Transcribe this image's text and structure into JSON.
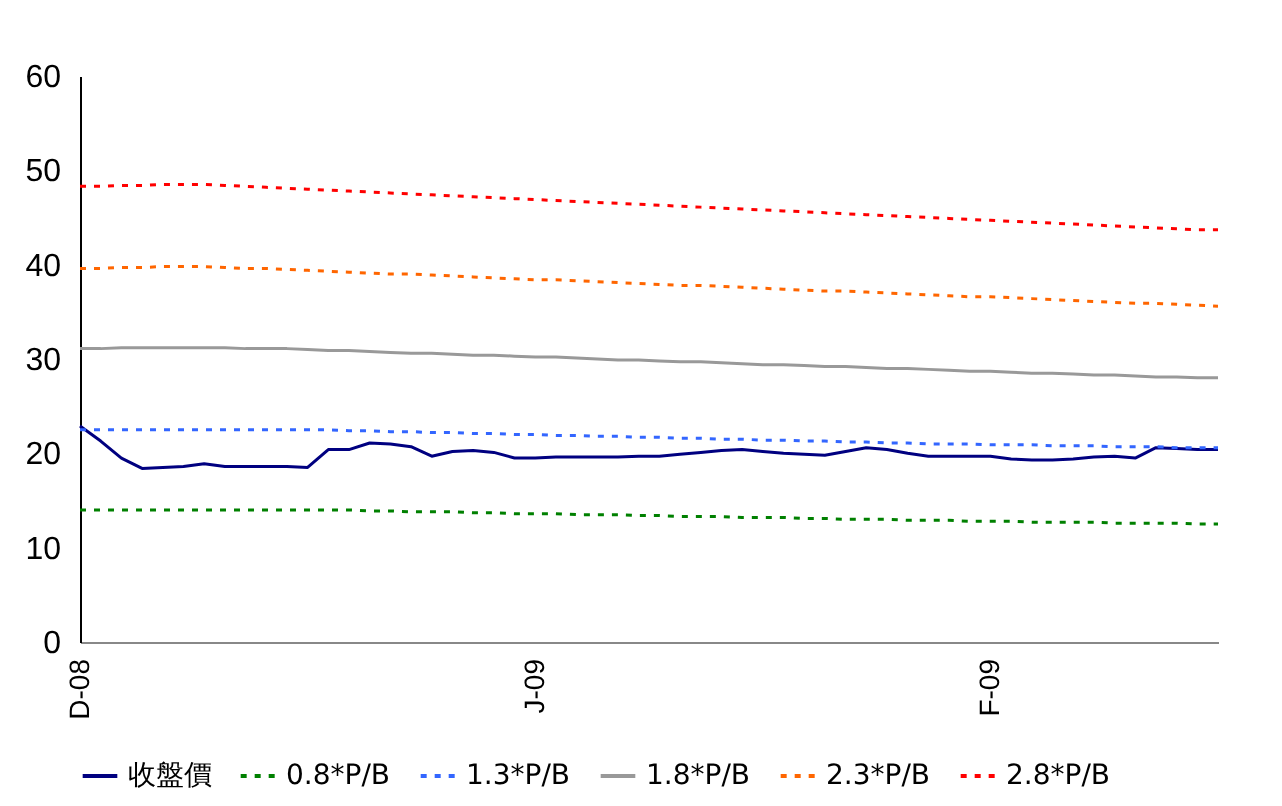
{
  "chart_data": {
    "type": "line",
    "categories": [
      "D-08",
      null,
      null,
      null,
      null,
      null,
      null,
      null,
      null,
      null,
      null,
      null,
      null,
      null,
      null,
      null,
      null,
      null,
      null,
      null,
      null,
      null,
      "J-09",
      null,
      null,
      null,
      null,
      null,
      null,
      null,
      null,
      null,
      null,
      null,
      null,
      null,
      null,
      null,
      null,
      null,
      null,
      null,
      null,
      null,
      "F-09",
      null,
      null,
      null,
      null,
      null,
      null,
      null,
      null,
      null,
      null,
      null
    ],
    "series": [
      {
        "name": "收盤價",
        "color": "#000080",
        "line_style": "solid",
        "values": [
          22.9,
          21.3,
          19.5,
          18.4,
          18.5,
          18.6,
          18.9,
          18.6,
          18.6,
          18.6,
          18.6,
          18.5,
          20.4,
          20.4,
          21.1,
          21.0,
          20.7,
          19.7,
          20.2,
          20.3,
          20.1,
          19.5,
          19.5,
          19.6,
          19.6,
          19.6,
          19.6,
          19.7,
          19.7,
          19.9,
          20.1,
          20.3,
          20.4,
          20.2,
          20.0,
          19.9,
          19.8,
          20.2,
          20.6,
          20.4,
          20.0,
          19.7,
          19.7,
          19.7,
          19.7,
          19.4,
          19.3,
          19.3,
          19.4,
          19.6,
          19.7,
          19.5,
          20.6,
          20.5,
          20.4,
          20.4
        ]
      },
      {
        "name": "0.8*P/B",
        "color": "#008000",
        "line_style": "dashed",
        "values": [
          14.0,
          14.0,
          14.0,
          14.0,
          14.0,
          14.0,
          14.0,
          14.0,
          14.0,
          14.0,
          14.0,
          14.0,
          14.0,
          14.0,
          13.9,
          13.9,
          13.8,
          13.8,
          13.8,
          13.7,
          13.7,
          13.6,
          13.6,
          13.6,
          13.5,
          13.5,
          13.5,
          13.4,
          13.4,
          13.3,
          13.3,
          13.3,
          13.2,
          13.2,
          13.2,
          13.1,
          13.1,
          13.0,
          13.0,
          13.0,
          12.9,
          12.9,
          12.9,
          12.8,
          12.8,
          12.8,
          12.7,
          12.7,
          12.7,
          12.7,
          12.6,
          12.6,
          12.6,
          12.6,
          12.5,
          12.5
        ]
      },
      {
        "name": "1.3*P/B",
        "color": "#3366ff",
        "line_style": "dashed",
        "values": [
          22.5,
          22.5,
          22.5,
          22.5,
          22.5,
          22.5,
          22.5,
          22.5,
          22.5,
          22.5,
          22.5,
          22.5,
          22.5,
          22.4,
          22.4,
          22.3,
          22.3,
          22.2,
          22.2,
          22.1,
          22.1,
          22.0,
          22.0,
          21.9,
          21.9,
          21.8,
          21.8,
          21.7,
          21.7,
          21.6,
          21.6,
          21.5,
          21.5,
          21.4,
          21.4,
          21.3,
          21.3,
          21.2,
          21.2,
          21.1,
          21.1,
          21.0,
          21.0,
          21.0,
          20.9,
          20.9,
          20.9,
          20.8,
          20.8,
          20.8,
          20.7,
          20.7,
          20.7,
          20.6,
          20.6,
          20.6
        ]
      },
      {
        "name": "1.8*P/B",
        "color": "#999999",
        "line_style": "solid",
        "values": [
          31.1,
          31.1,
          31.2,
          31.2,
          31.2,
          31.2,
          31.2,
          31.2,
          31.1,
          31.1,
          31.1,
          31.0,
          30.9,
          30.9,
          30.8,
          30.7,
          30.6,
          30.6,
          30.5,
          30.4,
          30.4,
          30.3,
          30.2,
          30.2,
          30.1,
          30.0,
          29.9,
          29.9,
          29.8,
          29.7,
          29.7,
          29.6,
          29.5,
          29.4,
          29.4,
          29.3,
          29.2,
          29.2,
          29.1,
          29.0,
          29.0,
          28.9,
          28.8,
          28.7,
          28.7,
          28.6,
          28.5,
          28.5,
          28.4,
          28.3,
          28.3,
          28.2,
          28.1,
          28.1,
          28.0,
          28.0
        ]
      },
      {
        "name": "2.3*P/B",
        "color": "#ff6600",
        "line_style": "dashed",
        "values": [
          39.6,
          39.6,
          39.7,
          39.7,
          39.8,
          39.8,
          39.8,
          39.7,
          39.6,
          39.6,
          39.5,
          39.4,
          39.3,
          39.2,
          39.1,
          39.0,
          39.0,
          38.9,
          38.8,
          38.7,
          38.6,
          38.5,
          38.4,
          38.4,
          38.3,
          38.2,
          38.1,
          38.0,
          37.9,
          37.8,
          37.8,
          37.7,
          37.6,
          37.5,
          37.4,
          37.3,
          37.2,
          37.2,
          37.1,
          37.0,
          36.9,
          36.8,
          36.7,
          36.6,
          36.6,
          36.5,
          36.4,
          36.3,
          36.2,
          36.1,
          36.0,
          35.9,
          35.9,
          35.8,
          35.7,
          35.6
        ]
      },
      {
        "name": "2.8*P/B",
        "color": "#ff0000",
        "line_style": "dashed",
        "values": [
          48.3,
          48.3,
          48.4,
          48.4,
          48.5,
          48.5,
          48.5,
          48.4,
          48.3,
          48.2,
          48.1,
          48.0,
          47.9,
          47.8,
          47.7,
          47.6,
          47.5,
          47.4,
          47.3,
          47.2,
          47.1,
          47.0,
          46.9,
          46.8,
          46.7,
          46.6,
          46.5,
          46.4,
          46.3,
          46.2,
          46.1,
          46.0,
          45.9,
          45.8,
          45.7,
          45.6,
          45.5,
          45.4,
          45.3,
          45.2,
          45.1,
          45.0,
          44.9,
          44.8,
          44.7,
          44.6,
          44.5,
          44.4,
          44.3,
          44.2,
          44.1,
          44.0,
          43.9,
          43.8,
          43.7,
          43.7
        ]
      }
    ],
    "ylim": [
      0,
      60
    ],
    "yticks": [
      0,
      10,
      20,
      30,
      40,
      50,
      60
    ],
    "grid": false,
    "legend": "bottom",
    "marker": "none"
  }
}
